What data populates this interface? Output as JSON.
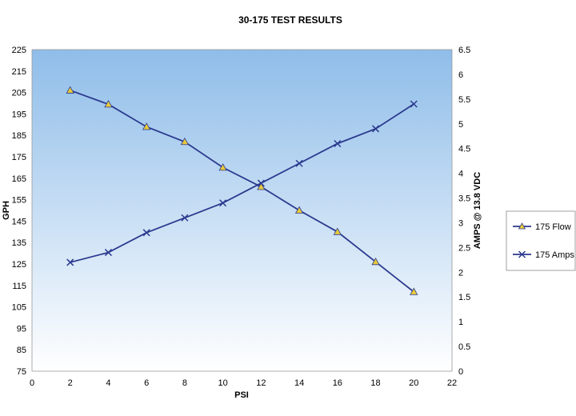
{
  "chart_data": {
    "type": "line",
    "title": "30-175 TEST RESULTS",
    "xlabel": "PSI",
    "ylabel": "GPH",
    "y2label": "AMPS @ 13.8 VDC",
    "xlim": [
      0,
      22
    ],
    "ylim": [
      75,
      225
    ],
    "y2lim": [
      0,
      6.5
    ],
    "x_ticks": [
      "0",
      "2",
      "4",
      "6",
      "8",
      "10",
      "12",
      "14",
      "16",
      "18",
      "20",
      "22"
    ],
    "y_ticks": [
      "75",
      "85",
      "95",
      "105",
      "115",
      "125",
      "135",
      "145",
      "155",
      "165",
      "175",
      "185",
      "195",
      "205",
      "215",
      "225"
    ],
    "y2_ticks": [
      "0",
      "0.5",
      "1",
      "1.5",
      "2",
      "2.5",
      "3",
      "3.5",
      "4",
      "4.5",
      "5",
      "5.5",
      "6",
      "6.5"
    ],
    "x": [
      2,
      4,
      6,
      8,
      10,
      12,
      14,
      16,
      18,
      20
    ],
    "series": [
      {
        "name": "175 Flow",
        "axis": "left",
        "marker": "triangle",
        "values": [
          206,
          199.5,
          189,
          182,
          170,
          161,
          150,
          140,
          126,
          112
        ]
      },
      {
        "name": "175 Amps",
        "axis": "right",
        "marker": "x",
        "values": [
          2.2,
          2.4,
          2.8,
          3.1,
          3.4,
          3.8,
          4.2,
          4.6,
          4.9,
          5.4
        ]
      }
    ],
    "legend": "right",
    "grid": false
  },
  "colors": {
    "line": "#2b3a8f",
    "triangle_fill": "#e8c93a",
    "plot_top": "#8fbde9",
    "plot_bottom": "#ffffff"
  }
}
